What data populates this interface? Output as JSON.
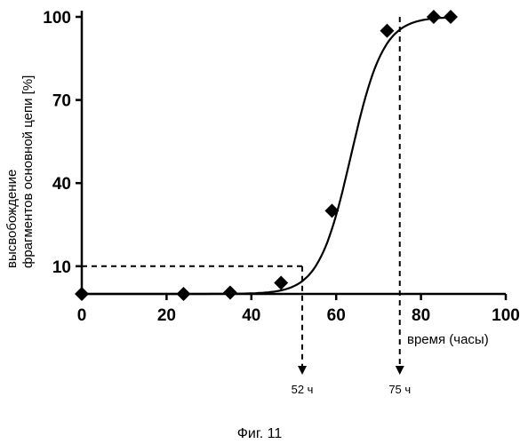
{
  "chart_data": {
    "type": "line",
    "xlabel": "время (часы)",
    "ylabel": [
      "высвобождение",
      "фрагментов основной цепи [%]"
    ],
    "xlim": [
      0,
      100
    ],
    "ylim": [
      0,
      100
    ],
    "x_ticks": [
      0,
      20,
      40,
      60,
      80,
      100
    ],
    "y_ticks": [
      10,
      40,
      70,
      100
    ],
    "grid": false,
    "series": [
      {
        "marker": "diamond",
        "points": [
          {
            "x": 0,
            "y": 0
          },
          {
            "x": 24,
            "y": 0
          },
          {
            "x": 35,
            "y": 0.5
          },
          {
            "x": 47,
            "y": 4
          },
          {
            "x": 59,
            "y": 30
          },
          {
            "x": 72,
            "y": 95
          },
          {
            "x": 83,
            "y": 100
          },
          {
            "x": 87,
            "y": 100
          }
        ]
      }
    ],
    "reference_lines": [
      {
        "y": 10,
        "x": 52,
        "label": "52 ч"
      },
      {
        "y": 100,
        "x": 75,
        "label": "75 ч"
      }
    ]
  },
  "caption": "Фиг. 11"
}
